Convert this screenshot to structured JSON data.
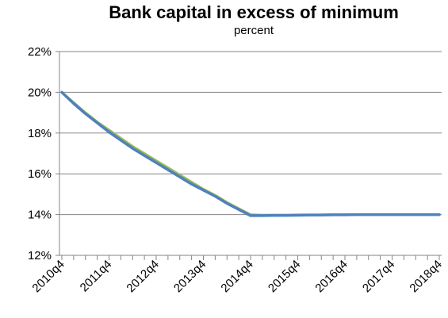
{
  "chart_data": {
    "type": "line",
    "title": "Bank capital in excess of minimum",
    "subtitle": "percent",
    "xlabel": "",
    "ylabel": "",
    "categories": [
      "2010q4",
      "2011q4",
      "2012q4",
      "2013q4",
      "2014q4",
      "2015q4",
      "2016q4",
      "2017q4",
      "2018q4"
    ],
    "ylim": [
      12,
      22
    ],
    "yticks": [
      12,
      14,
      16,
      18,
      20,
      22
    ],
    "ytick_labels": [
      "12%",
      "14%",
      "16%",
      "18%",
      "20%",
      "22%"
    ],
    "grid": true,
    "series": [
      {
        "color": "#9bbb59",
        "x": [
          0,
          1,
          2,
          3,
          4,
          5,
          6,
          7,
          8,
          9,
          10,
          11,
          12,
          13,
          14,
          15,
          16,
          17,
          18,
          19,
          20,
          21,
          22,
          23,
          24,
          25,
          26,
          27,
          28,
          29,
          30,
          31,
          32
        ],
        "values": [
          20.0,
          19.5,
          19.0,
          18.55,
          18.15,
          17.75,
          17.35,
          17.0,
          16.65,
          16.3,
          15.95,
          15.6,
          15.25,
          14.95,
          14.6,
          14.3,
          14.0,
          13.98,
          13.98,
          13.98,
          13.99,
          13.99,
          13.99,
          14.0,
          14.0,
          14.0,
          14.0,
          14.0,
          14.0,
          14.0,
          14.0,
          14.0,
          14.0
        ]
      },
      {
        "color": "#4f81bd",
        "x": [
          0,
          1,
          2,
          3,
          4,
          5,
          6,
          7,
          8,
          9,
          10,
          11,
          12,
          13,
          14,
          15,
          16,
          17,
          18,
          19,
          20,
          21,
          22,
          23,
          24,
          25,
          26,
          27,
          28,
          29,
          30,
          31,
          32
        ],
        "values": [
          20.0,
          19.45,
          18.95,
          18.5,
          18.05,
          17.65,
          17.25,
          16.9,
          16.55,
          16.2,
          15.85,
          15.5,
          15.2,
          14.9,
          14.55,
          14.25,
          13.95,
          13.95,
          13.96,
          13.96,
          13.97,
          13.98,
          13.98,
          13.99,
          13.99,
          14.0,
          14.0,
          14.0,
          14.0,
          14.0,
          14.0,
          14.0,
          14.0
        ]
      }
    ]
  }
}
